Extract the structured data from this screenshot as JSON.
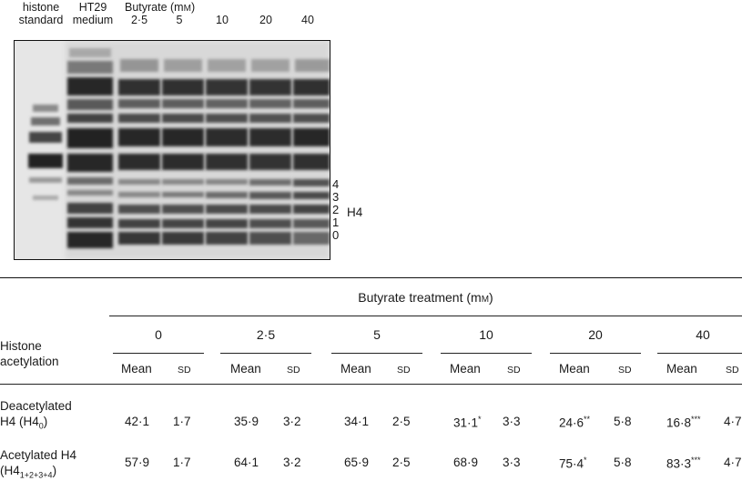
{
  "gel": {
    "lane_labels": [
      {
        "id": "histone",
        "line1": "histone",
        "line2": "standard"
      },
      {
        "id": "ht29",
        "line1": "HT29",
        "line2": "medium"
      }
    ],
    "butyrate_header": "Butyrate (m",
    "butyrate_unit": "M",
    "butyrate_close": ")",
    "butyrate_lanes": [
      "2·5",
      "5",
      "10",
      "20",
      "40"
    ],
    "band_numbers": [
      "4",
      "3",
      "2",
      "1",
      "0"
    ],
    "band_label": "H4"
  },
  "table": {
    "treatment_header": "Butyrate treatment (m",
    "treatment_unit": "M",
    "treatment_close": ")",
    "row_header_line1": "Histone",
    "row_header_line2": "acetylation",
    "concentrations": [
      "0",
      "2·5",
      "5",
      "10",
      "20",
      "40"
    ],
    "mean_label": "Mean",
    "sd_label": "SD",
    "rows": [
      {
        "label_line1": "Deacetylated",
        "label_line2": "H4 (H4",
        "label_sub": "0",
        "label_close": ")",
        "values": [
          {
            "mean": "42·1",
            "sig": "",
            "sd": "1·7"
          },
          {
            "mean": "35·9",
            "sig": "",
            "sd": "3·2"
          },
          {
            "mean": "34·1",
            "sig": "",
            "sd": "2·5"
          },
          {
            "mean": "31·1",
            "sig": "*",
            "sd": "3·3"
          },
          {
            "mean": "24·6",
            "sig": "**",
            "sd": "5·8"
          },
          {
            "mean": "16·8",
            "sig": "***",
            "sd": "4·7"
          }
        ]
      },
      {
        "label_line1": "Acetylated H4",
        "label_line2": "(H4",
        "label_sub": "1+2+3+4",
        "label_close": ")",
        "values": [
          {
            "mean": "57·9",
            "sig": "",
            "sd": "1·7"
          },
          {
            "mean": "64·1",
            "sig": "",
            "sd": "3·2"
          },
          {
            "mean": "65·9",
            "sig": "",
            "sd": "2·5"
          },
          {
            "mean": "68·9",
            "sig": "",
            "sd": "3·3"
          },
          {
            "mean": "75·4",
            "sig": "*",
            "sd": "5·8"
          },
          {
            "mean": "83·3",
            "sig": "***",
            "sd": "4·7"
          }
        ]
      }
    ]
  }
}
